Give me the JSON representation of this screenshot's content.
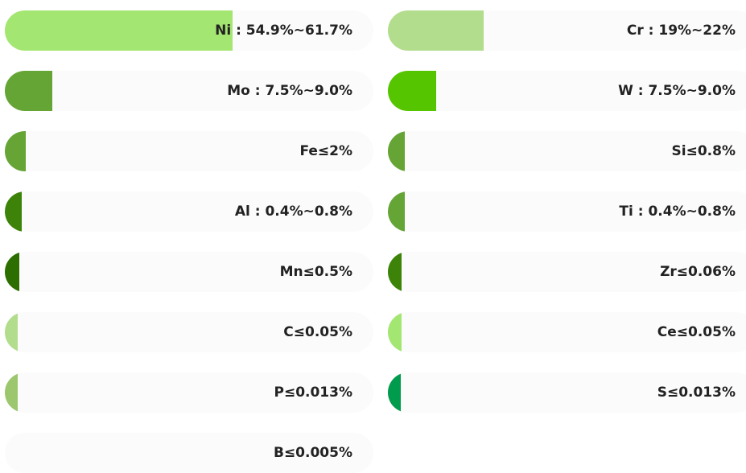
{
  "chart_data": {
    "type": "bar",
    "items": [
      {
        "label": "Ni : 54.9%~61.7%",
        "value": 61.7,
        "color": "#a4e672"
      },
      {
        "label": "Cr : 19%~22%",
        "value": 26,
        "color": "#b2dd8d"
      },
      {
        "label": "Mo : 7.5%~9.0%",
        "value": 12.8,
        "color": "#65a536"
      },
      {
        "label": "W : 7.5%~9.0%",
        "value": 13,
        "color": "#55c500"
      },
      {
        "label": "Fe≤2%",
        "value": 5.6,
        "color": "#66a535"
      },
      {
        "label": "Si≤0.8%",
        "value": 4.5,
        "color": "#66a535"
      },
      {
        "label": "Al : 0.4%~0.8%",
        "value": 4.5,
        "color": "#3d8309"
      },
      {
        "label": "Ti : 0.4%~0.8%",
        "value": 4.5,
        "color": "#65a536"
      },
      {
        "label": "Mn≤0.5%",
        "value": 4,
        "color": "#2d6e00"
      },
      {
        "label": "Zr≤0.06%",
        "value": 3.8,
        "color": "#3d8309"
      },
      {
        "label": "C≤0.05%",
        "value": 3.5,
        "color": "#b2dd8d"
      },
      {
        "label": "Ce≤0.05%",
        "value": 3.8,
        "color": "#a4e672"
      },
      {
        "label": "P≤0.013%",
        "value": 3.5,
        "color": "#9cc76f"
      },
      {
        "label": "S≤0.013%",
        "value": 3.5,
        "color": "#009b4c"
      },
      {
        "label": "B≤0.005%",
        "value": 0,
        "color": "#a4e672"
      }
    ]
  }
}
